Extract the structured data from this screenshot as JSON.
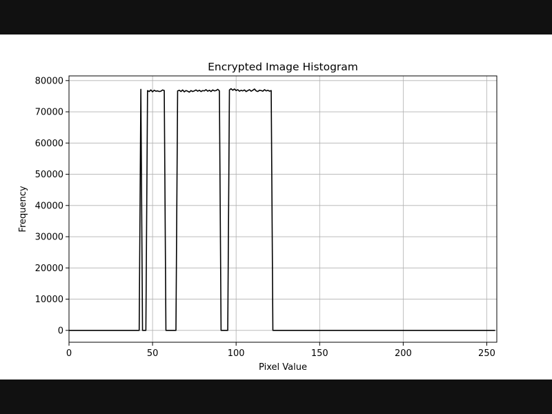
{
  "chart_data": {
    "type": "line",
    "title": "Encrypted Image Histogram",
    "xlabel": "Pixel Value",
    "ylabel": "Frequency",
    "xlim": [
      0,
      255
    ],
    "ylim": [
      -3800,
      81500
    ],
    "xticks": [
      0,
      50,
      100,
      150,
      200,
      250
    ],
    "yticks": [
      0,
      10000,
      20000,
      30000,
      40000,
      50000,
      60000,
      70000,
      80000
    ],
    "grid": true,
    "line_color": "#000000",
    "series": [
      {
        "x": [
          0,
          41,
          42,
          43,
          44,
          45,
          46,
          47,
          48,
          49,
          50,
          51,
          52,
          53,
          54,
          55,
          56,
          57,
          58,
          59,
          60,
          61,
          62,
          63,
          64,
          65,
          66,
          67,
          68,
          69,
          70,
          71,
          72,
          73,
          74,
          75,
          76,
          77,
          78,
          79,
          80,
          81,
          82,
          83,
          84,
          85,
          86,
          87,
          88,
          89,
          90,
          91,
          92,
          93,
          94,
          95,
          96,
          97,
          98,
          99,
          100,
          101,
          102,
          103,
          104,
          105,
          106,
          107,
          108,
          109,
          110,
          111,
          112,
          113,
          114,
          115,
          116,
          117,
          118,
          119,
          120,
          121,
          122,
          123,
          124,
          255
        ],
        "y": [
          0,
          0,
          0,
          77200,
          0,
          0,
          0,
          76800,
          76500,
          77000,
          76400,
          76900,
          76600,
          76700,
          76500,
          76600,
          77000,
          76800,
          0,
          0,
          0,
          0,
          0,
          0,
          0,
          76700,
          76900,
          76500,
          77000,
          76400,
          76800,
          76600,
          76300,
          76800,
          76500,
          76700,
          77000,
          76600,
          76900,
          76500,
          76800,
          76700,
          77100,
          76600,
          76900,
          76500,
          77000,
          76700,
          76800,
          77200,
          76700,
          0,
          0,
          0,
          0,
          0,
          77000,
          77400,
          76900,
          77300,
          76800,
          77100,
          76600,
          76900,
          76700,
          77000,
          76500,
          76800,
          77100,
          76600,
          76900,
          77300,
          76700,
          76500,
          76900,
          76800,
          76600,
          77100,
          76700,
          76900,
          76600,
          76800,
          0,
          0,
          0,
          0
        ]
      }
    ]
  }
}
